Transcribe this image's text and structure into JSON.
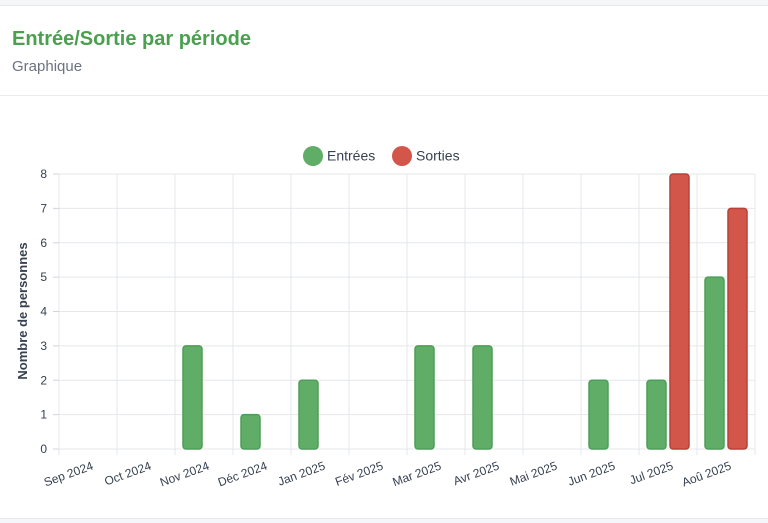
{
  "header": {
    "title": "Entrée/Sortie par période",
    "subtitle": "Graphique"
  },
  "colors": {
    "entrees": "#5fad67",
    "entrees_border": "#4f9d58",
    "sorties": "#d2564a",
    "sorties_border": "#b94137",
    "title": "#4aa04f"
  },
  "chart_data": {
    "type": "bar",
    "categories": [
      "Sep 2024",
      "Oct 2024",
      "Nov 2024",
      "Déc 2024",
      "Jan 2025",
      "Fév 2025",
      "Mar 2025",
      "Avr 2025",
      "Mai 2025",
      "Jun 2025",
      "Jul 2025",
      "Aoû 2025"
    ],
    "series": [
      {
        "name": "Entrées",
        "values": [
          0,
          0,
          3,
          1,
          2,
          0,
          3,
          3,
          0,
          2,
          2,
          5
        ]
      },
      {
        "name": "Sorties",
        "values": [
          0,
          0,
          0,
          0,
          0,
          0,
          0,
          0,
          0,
          0,
          8,
          7
        ]
      }
    ],
    "ylabel": "Nombre de personnes",
    "ylim": [
      0,
      8
    ],
    "yticks": [
      "0",
      "1",
      "2",
      "3",
      "4",
      "5",
      "6",
      "7",
      "8"
    ],
    "legend": "top-center",
    "grid": true
  }
}
